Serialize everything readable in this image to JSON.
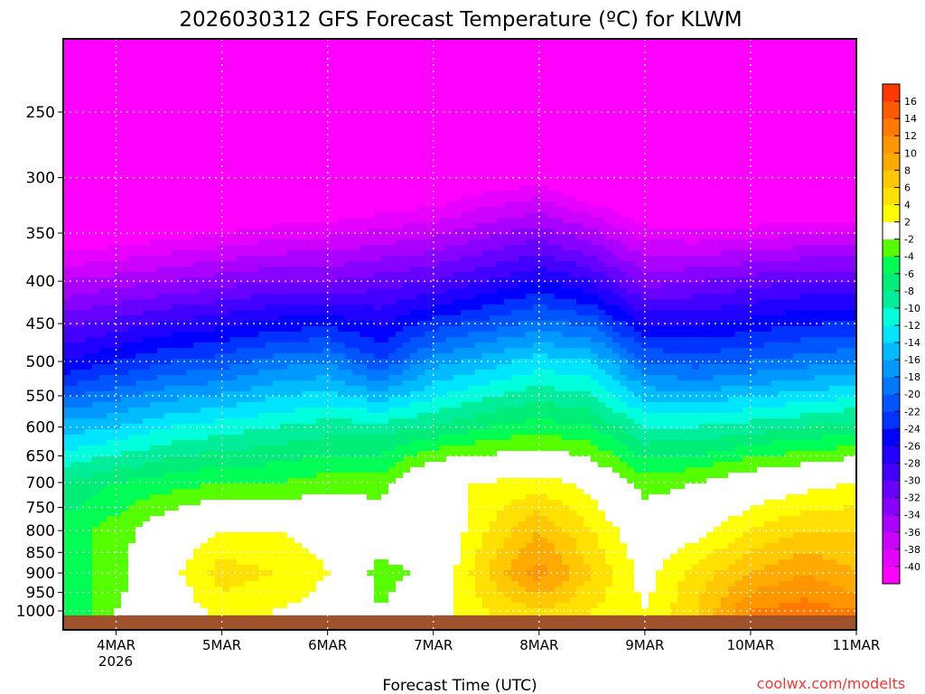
{
  "chart_data": {
    "type": "heatmap",
    "title": "2026030312 GFS Forecast Temperature (ºC) for KLWM",
    "xlabel": "Forecast Time (UTC)",
    "ylabel": "",
    "credit": "coolwx.com/modelts",
    "x_ticks": [
      "4MAR",
      "5MAR",
      "6MAR",
      "7MAR",
      "8MAR",
      "9MAR",
      "10MAR",
      "11MAR"
    ],
    "x_year_label": "2026",
    "x_range_days": [
      3.5,
      11.0
    ],
    "x_times_days": [
      3.5,
      4.0,
      4.5,
      5.0,
      5.5,
      6.0,
      6.5,
      7.0,
      7.5,
      8.0,
      8.5,
      9.0,
      9.5,
      10.0,
      10.5,
      11.0
    ],
    "y_ticks": [
      250,
      300,
      350,
      400,
      450,
      500,
      550,
      600,
      650,
      700,
      750,
      800,
      850,
      900,
      950,
      1000
    ],
    "y_range_hpa": [
      204,
      1054
    ],
    "y_scale": "log, inverted",
    "levels_hpa": [
      200,
      300,
      400,
      500,
      600,
      700,
      800,
      900,
      1000,
      1054
    ],
    "temperature_c": [
      [
        -62,
        -62,
        -60,
        -60,
        -60,
        -59,
        -60,
        -58,
        -56,
        -56,
        -56,
        -56,
        -58,
        -58,
        -60,
        -60
      ],
      [
        -50,
        -50,
        -49,
        -48,
        -47,
        -46,
        -45,
        -44,
        -42,
        -41,
        -44,
        -46,
        -48,
        -48,
        -48,
        -48
      ],
      [
        -36,
        -35,
        -34,
        -33,
        -32,
        -32,
        -31,
        -30,
        -28,
        -26,
        -28,
        -33,
        -32,
        -31,
        -30,
        -30
      ],
      [
        -26,
        -24,
        -22,
        -21,
        -19,
        -18,
        -22,
        -17,
        -15,
        -13,
        -14,
        -20,
        -21,
        -20,
        -19,
        -18
      ],
      [
        -15,
        -14,
        -12,
        -11,
        -10,
        -9,
        -9,
        -8,
        -6,
        -5,
        -6,
        -10,
        -10,
        -9,
        -8,
        -7
      ],
      [
        -8,
        -6,
        -5,
        -4,
        -4,
        -3,
        -3,
        2,
        2,
        3,
        1,
        -3,
        -2,
        0,
        1,
        2
      ],
      [
        -5,
        -3,
        0,
        2,
        2,
        1,
        0,
        -1,
        4,
        8,
        4,
        0,
        1,
        4,
        6,
        6
      ],
      [
        -5,
        -3,
        1,
        5,
        4,
        2,
        -3,
        -1,
        6,
        11,
        6,
        1,
        5,
        8,
        10,
        8
      ],
      [
        -6,
        -2,
        0,
        3,
        2,
        1,
        -2,
        1,
        4,
        6,
        4,
        2,
        6,
        12,
        13,
        12
      ],
      [
        -6,
        -2,
        0,
        3,
        2,
        1,
        -2,
        1,
        4,
        6,
        4,
        2,
        6,
        12,
        13,
        12
      ]
    ],
    "colorbar": {
      "labels": [
        "16",
        "14",
        "12",
        "10",
        "8",
        "6",
        "4",
        "2",
        "-2",
        "-4",
        "-6",
        "-8",
        "-10",
        "-12",
        "-14",
        "-16",
        "-18",
        "-20",
        "-22",
        "-24",
        "-26",
        "-28",
        "-30",
        "-32",
        "-34",
        "-36",
        "-38",
        "-40"
      ],
      "bounds": [
        -40,
        -38,
        -36,
        -34,
        -32,
        -30,
        -28,
        -26,
        -24,
        -22,
        -20,
        -18,
        -16,
        -14,
        -12,
        -10,
        -8,
        -6,
        -4,
        -2,
        2,
        4,
        6,
        8,
        10,
        12,
        14,
        16
      ],
      "colors": [
        "#ff00ff",
        "#e600ff",
        "#cc00ff",
        "#aa00ff",
        "#8800ff",
        "#6600ff",
        "#4400ff",
        "#2200ff",
        "#0000ff",
        "#0033ff",
        "#0055ff",
        "#0077ff",
        "#0099ff",
        "#00bbff",
        "#00e5ff",
        "#00ffdd",
        "#00ee99",
        "#00ee77",
        "#00ff55",
        "#55ff00",
        "#ffffff",
        "#ffff00",
        "#ffe000",
        "#ffc800",
        "#ffaa00",
        "#ff9600",
        "#ff7800",
        "#ff5a00",
        "#ff3800"
      ]
    },
    "ground_color": "#a0522d"
  }
}
